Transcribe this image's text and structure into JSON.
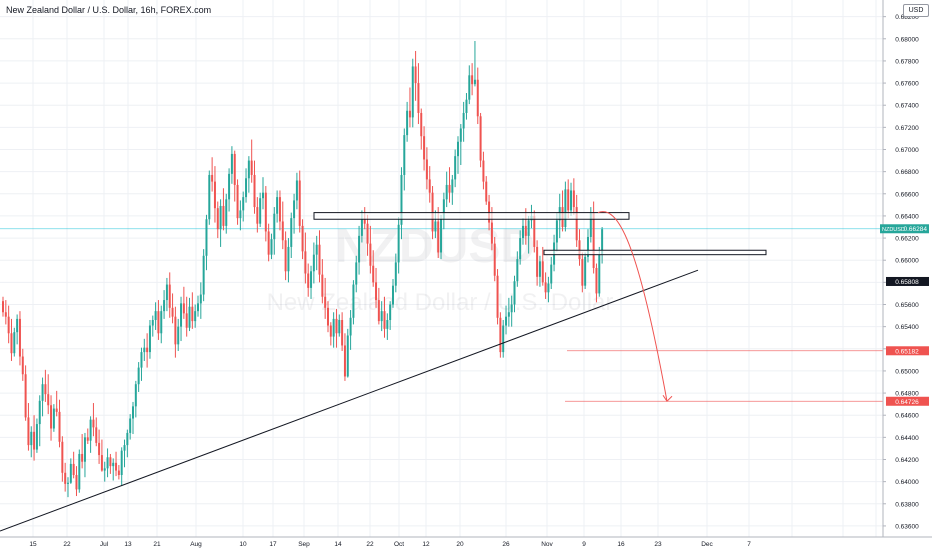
{
  "header": {
    "title": "New Zealand Dollar / U.S. Dollar, 16h, FOREX.com",
    "currency_button": "USD"
  },
  "watermark": {
    "symbol": "NZDUSD",
    "name": "New Zealand Dollar / U.S. Dollar"
  },
  "colors": {
    "up": "#26a69a",
    "down": "#ef5350",
    "grid": "#eef0f4",
    "axis_text": "#131722",
    "trendline": "#131722",
    "price_line": "#00bcd4",
    "live_price_tag": "#26a69a",
    "current_tag": "#131722",
    "target_red": "#ef5350"
  },
  "chart_data": {
    "type": "candlestick",
    "timeframe": "16h",
    "y_axis": {
      "range": [
        0.635,
        0.684
      ],
      "ticks": [
        "0.68400",
        "0.68200",
        "0.68000",
        "0.67800",
        "0.67600",
        "0.67400",
        "0.67200",
        "0.67000",
        "0.66800",
        "0.66600",
        "0.66400",
        "0.66200",
        "0.66000",
        "0.65800",
        "0.65600",
        "0.65400",
        "0.65200",
        "0.65000",
        "0.64800",
        "0.64600",
        "0.64400",
        "0.64200",
        "0.64000",
        "0.63800",
        "0.63600"
      ]
    },
    "x_axis": {
      "ticks": [
        "15",
        "22",
        "Jul",
        "13",
        "21",
        "Aug",
        "10",
        "17",
        "Sep",
        "14",
        "22",
        "Oct",
        "12",
        "20",
        "26",
        "Nov",
        "9",
        "16",
        "23",
        "Dec",
        "7"
      ]
    },
    "price_tags": [
      {
        "label": "NZDUSD",
        "value": "0.66284",
        "kind": "live"
      },
      {
        "value": "0.65808",
        "kind": "current"
      },
      {
        "value": "0.65182",
        "kind": "target"
      },
      {
        "value": "0.64726",
        "kind": "target"
      }
    ],
    "candles_ohlc": [
      [
        0.6563,
        0.6567,
        0.6549,
        0.6553
      ],
      [
        0.6553,
        0.6564,
        0.6542,
        0.6549
      ],
      [
        0.6549,
        0.6559,
        0.6525,
        0.6534
      ],
      [
        0.6534,
        0.6547,
        0.6509,
        0.6516
      ],
      [
        0.6516,
        0.6539,
        0.6513,
        0.6535
      ],
      [
        0.6535,
        0.6551,
        0.6524,
        0.6547
      ],
      [
        0.6547,
        0.6554,
        0.6505,
        0.6513
      ],
      [
        0.6513,
        0.652,
        0.6491,
        0.6497
      ],
      [
        0.6497,
        0.6505,
        0.6455,
        0.6458
      ],
      [
        0.6458,
        0.6471,
        0.6428,
        0.6433
      ],
      [
        0.6433,
        0.645,
        0.6422,
        0.6445
      ],
      [
        0.6445,
        0.646,
        0.6419,
        0.6429
      ],
      [
        0.6429,
        0.6457,
        0.6426,
        0.6452
      ],
      [
        0.6452,
        0.6478,
        0.6432,
        0.6473
      ],
      [
        0.6473,
        0.6494,
        0.6459,
        0.6488
      ],
      [
        0.6488,
        0.6501,
        0.6472,
        0.6479
      ],
      [
        0.6479,
        0.6497,
        0.6461,
        0.6469
      ],
      [
        0.6469,
        0.6478,
        0.6437,
        0.6448
      ],
      [
        0.6448,
        0.647,
        0.6445,
        0.6466
      ],
      [
        0.6466,
        0.6482,
        0.6459,
        0.6463
      ],
      [
        0.6463,
        0.6474,
        0.6431,
        0.6436
      ],
      [
        0.6436,
        0.6441,
        0.64,
        0.6408
      ],
      [
        0.6408,
        0.6417,
        0.6391,
        0.6398
      ],
      [
        0.6398,
        0.6404,
        0.6386,
        0.6399
      ],
      [
        0.6399,
        0.6421,
        0.6398,
        0.6416
      ],
      [
        0.6416,
        0.6427,
        0.6403,
        0.6406
      ],
      [
        0.6406,
        0.6414,
        0.6387,
        0.6393
      ],
      [
        0.6393,
        0.6429,
        0.639,
        0.6425
      ],
      [
        0.6425,
        0.6443,
        0.6412,
        0.6418
      ],
      [
        0.6418,
        0.6444,
        0.6404,
        0.644
      ],
      [
        0.644,
        0.6448,
        0.6434,
        0.6437
      ],
      [
        0.6437,
        0.6459,
        0.6426,
        0.6456
      ],
      [
        0.6456,
        0.6471,
        0.6441,
        0.6449
      ],
      [
        0.6449,
        0.6458,
        0.6432,
        0.6435
      ],
      [
        0.6435,
        0.6447,
        0.6416,
        0.6424
      ],
      [
        0.6424,
        0.6438,
        0.6409,
        0.641
      ],
      [
        0.641,
        0.6418,
        0.64,
        0.6412
      ],
      [
        0.6412,
        0.643,
        0.6404,
        0.6422
      ],
      [
        0.6422,
        0.6425,
        0.6407,
        0.6414
      ],
      [
        0.6414,
        0.6421,
        0.6401,
        0.6417
      ],
      [
        0.6417,
        0.6427,
        0.6405,
        0.641
      ],
      [
        0.641,
        0.6415,
        0.6402,
        0.6406
      ],
      [
        0.6406,
        0.6431,
        0.6396,
        0.6428
      ],
      [
        0.6428,
        0.6438,
        0.6413,
        0.6433
      ],
      [
        0.6433,
        0.6447,
        0.6422,
        0.6444
      ],
      [
        0.6444,
        0.6461,
        0.6438,
        0.6457
      ],
      [
        0.6457,
        0.6472,
        0.6443,
        0.6468
      ],
      [
        0.6468,
        0.6491,
        0.6458,
        0.6488
      ],
      [
        0.6488,
        0.6508,
        0.6481,
        0.6503
      ],
      [
        0.6503,
        0.6521,
        0.6491,
        0.6517
      ],
      [
        0.6517,
        0.6529,
        0.6509,
        0.6521
      ],
      [
        0.6521,
        0.6534,
        0.6503,
        0.6517
      ],
      [
        0.6517,
        0.6546,
        0.6511,
        0.6541
      ],
      [
        0.6541,
        0.655,
        0.6531,
        0.6546
      ],
      [
        0.6546,
        0.6562,
        0.6537,
        0.6554
      ],
      [
        0.6554,
        0.6564,
        0.6528,
        0.6534
      ],
      [
        0.6534,
        0.6559,
        0.6525,
        0.6554
      ],
      [
        0.6554,
        0.6573,
        0.6547,
        0.6564
      ],
      [
        0.6564,
        0.6584,
        0.6554,
        0.6578
      ],
      [
        0.6578,
        0.6589,
        0.6548,
        0.6557
      ],
      [
        0.6557,
        0.657,
        0.6543,
        0.6549
      ],
      [
        0.6549,
        0.6558,
        0.6512,
        0.6524
      ],
      [
        0.6524,
        0.6547,
        0.6518,
        0.654
      ],
      [
        0.654,
        0.6567,
        0.6527,
        0.6561
      ],
      [
        0.6561,
        0.6576,
        0.6547,
        0.6552
      ],
      [
        0.6552,
        0.6567,
        0.6531,
        0.6539
      ],
      [
        0.6539,
        0.6566,
        0.6536,
        0.6558
      ],
      [
        0.6558,
        0.6571,
        0.6538,
        0.6545
      ],
      [
        0.6545,
        0.656,
        0.6539,
        0.6554
      ],
      [
        0.6554,
        0.6568,
        0.6549,
        0.6561
      ],
      [
        0.6561,
        0.658,
        0.6547,
        0.6569
      ],
      [
        0.6569,
        0.661,
        0.6563,
        0.6604
      ],
      [
        0.6604,
        0.6641,
        0.6591,
        0.6637
      ],
      [
        0.6637,
        0.6681,
        0.6632,
        0.6677
      ],
      [
        0.6677,
        0.6693,
        0.6662,
        0.6671
      ],
      [
        0.6671,
        0.6685,
        0.6634,
        0.6647
      ],
      [
        0.6647,
        0.6653,
        0.662,
        0.6628
      ],
      [
        0.6628,
        0.6655,
        0.6612,
        0.6649
      ],
      [
        0.6649,
        0.6665,
        0.6627,
        0.6631
      ],
      [
        0.6631,
        0.666,
        0.6624,
        0.6655
      ],
      [
        0.6655,
        0.6683,
        0.6644,
        0.6678
      ],
      [
        0.6678,
        0.6703,
        0.6669,
        0.6696
      ],
      [
        0.6696,
        0.6699,
        0.6653,
        0.6668
      ],
      [
        0.6668,
        0.6673,
        0.6632,
        0.6638
      ],
      [
        0.6638,
        0.6654,
        0.6627,
        0.6645
      ],
      [
        0.6645,
        0.6662,
        0.6635,
        0.6657
      ],
      [
        0.6657,
        0.6683,
        0.6652,
        0.6674
      ],
      [
        0.6674,
        0.6694,
        0.6661,
        0.669
      ],
      [
        0.669,
        0.6709,
        0.667,
        0.6677
      ],
      [
        0.6677,
        0.669,
        0.6642,
        0.6648
      ],
      [
        0.6648,
        0.6657,
        0.6625,
        0.6633
      ],
      [
        0.6633,
        0.6661,
        0.663,
        0.6656
      ],
      [
        0.6656,
        0.6675,
        0.6646,
        0.6661
      ],
      [
        0.6661,
        0.6667,
        0.6617,
        0.6626
      ],
      [
        0.6626,
        0.6633,
        0.6599,
        0.6605
      ],
      [
        0.6605,
        0.6624,
        0.6601,
        0.6619
      ],
      [
        0.6619,
        0.6648,
        0.6605,
        0.6642
      ],
      [
        0.6642,
        0.6663,
        0.6634,
        0.6657
      ],
      [
        0.6657,
        0.6663,
        0.6627,
        0.6635
      ],
      [
        0.6635,
        0.6653,
        0.661,
        0.6618
      ],
      [
        0.6618,
        0.6626,
        0.6582,
        0.659
      ],
      [
        0.659,
        0.662,
        0.658,
        0.6612
      ],
      [
        0.6612,
        0.6643,
        0.6602,
        0.6638
      ],
      [
        0.6638,
        0.666,
        0.6624,
        0.6654
      ],
      [
        0.6654,
        0.6679,
        0.6646,
        0.6672
      ],
      [
        0.6672,
        0.6681,
        0.6625,
        0.6631
      ],
      [
        0.6631,
        0.6637,
        0.6601,
        0.6608
      ],
      [
        0.6608,
        0.6625,
        0.6579,
        0.6588
      ],
      [
        0.6588,
        0.6597,
        0.6567,
        0.6575
      ],
      [
        0.6575,
        0.6595,
        0.6565,
        0.659
      ],
      [
        0.659,
        0.6616,
        0.6579,
        0.6605
      ],
      [
        0.6605,
        0.6622,
        0.6591,
        0.6614
      ],
      [
        0.6614,
        0.6627,
        0.658,
        0.6587
      ],
      [
        0.6587,
        0.6601,
        0.6561,
        0.6567
      ],
      [
        0.6567,
        0.6584,
        0.6547,
        0.6557
      ],
      [
        0.6557,
        0.6563,
        0.6535,
        0.6541
      ],
      [
        0.6541,
        0.6544,
        0.6523,
        0.6531
      ],
      [
        0.6531,
        0.6553,
        0.6521,
        0.6547
      ],
      [
        0.6547,
        0.6556,
        0.6521,
        0.6534
      ],
      [
        0.6534,
        0.6551,
        0.6531,
        0.6546
      ],
      [
        0.6546,
        0.6553,
        0.6518,
        0.6523
      ],
      [
        0.6523,
        0.6534,
        0.6491,
        0.6495
      ],
      [
        0.6495,
        0.6538,
        0.6494,
        0.6532
      ],
      [
        0.6532,
        0.6555,
        0.6519,
        0.6548
      ],
      [
        0.6548,
        0.6582,
        0.6542,
        0.6578
      ],
      [
        0.6578,
        0.6604,
        0.6571,
        0.6598
      ],
      [
        0.6598,
        0.6631,
        0.6587,
        0.6622
      ],
      [
        0.6622,
        0.6645,
        0.6616,
        0.6637
      ],
      [
        0.6637,
        0.6648,
        0.6628,
        0.6633
      ],
      [
        0.6633,
        0.6641,
        0.6604,
        0.6615
      ],
      [
        0.6615,
        0.6631,
        0.6588,
        0.6595
      ],
      [
        0.6595,
        0.6609,
        0.6576,
        0.658
      ],
      [
        0.658,
        0.6593,
        0.6557,
        0.6564
      ],
      [
        0.6564,
        0.6575,
        0.6542,
        0.6545
      ],
      [
        0.6545,
        0.6563,
        0.6536,
        0.6554
      ],
      [
        0.6554,
        0.6567,
        0.653,
        0.6538
      ],
      [
        0.6538,
        0.6552,
        0.6528,
        0.6546
      ],
      [
        0.6546,
        0.6563,
        0.6537,
        0.656
      ],
      [
        0.656,
        0.6583,
        0.6557,
        0.6577
      ],
      [
        0.6577,
        0.6606,
        0.6571,
        0.6598
      ],
      [
        0.6598,
        0.6639,
        0.6588,
        0.6632
      ],
      [
        0.6632,
        0.6684,
        0.6619,
        0.6677
      ],
      [
        0.6677,
        0.6719,
        0.6663,
        0.6713
      ],
      [
        0.6713,
        0.6743,
        0.6707,
        0.6735
      ],
      [
        0.6735,
        0.6756,
        0.672,
        0.6729
      ],
      [
        0.6729,
        0.6782,
        0.672,
        0.6775
      ],
      [
        0.6775,
        0.6789,
        0.6744,
        0.676
      ],
      [
        0.676,
        0.6778,
        0.6723,
        0.6733
      ],
      [
        0.6733,
        0.6737,
        0.67,
        0.6712
      ],
      [
        0.6712,
        0.6721,
        0.6681,
        0.6691
      ],
      [
        0.6691,
        0.6702,
        0.6664,
        0.6673
      ],
      [
        0.6673,
        0.6685,
        0.6652,
        0.6661
      ],
      [
        0.6661,
        0.6667,
        0.6619,
        0.6626
      ],
      [
        0.6626,
        0.6645,
        0.662,
        0.6635
      ],
      [
        0.6635,
        0.6648,
        0.6602,
        0.6607
      ],
      [
        0.6607,
        0.6641,
        0.6601,
        0.6637
      ],
      [
        0.6637,
        0.6661,
        0.6628,
        0.6655
      ],
      [
        0.6655,
        0.668,
        0.6648,
        0.6668
      ],
      [
        0.6668,
        0.6684,
        0.6652,
        0.6661
      ],
      [
        0.6661,
        0.6677,
        0.665,
        0.6673
      ],
      [
        0.6673,
        0.67,
        0.6666,
        0.6694
      ],
      [
        0.6694,
        0.6712,
        0.6678,
        0.6707
      ],
      [
        0.6707,
        0.6723,
        0.6686,
        0.6719
      ],
      [
        0.6719,
        0.6743,
        0.6707,
        0.6733
      ],
      [
        0.6733,
        0.6751,
        0.6727,
        0.6745
      ],
      [
        0.6745,
        0.6776,
        0.6741,
        0.6767
      ],
      [
        0.6767,
        0.6778,
        0.6749,
        0.6759
      ],
      [
        0.6759,
        0.6798,
        0.6757,
        0.6763
      ],
      [
        0.6763,
        0.6774,
        0.6723,
        0.673
      ],
      [
        0.673,
        0.6733,
        0.6684,
        0.669
      ],
      [
        0.669,
        0.6698,
        0.6664,
        0.6671
      ],
      [
        0.6671,
        0.6676,
        0.665,
        0.6653
      ],
      [
        0.6653,
        0.6659,
        0.6627,
        0.6634
      ],
      [
        0.6634,
        0.6648,
        0.6609,
        0.6615
      ],
      [
        0.6615,
        0.6621,
        0.6581,
        0.6586
      ],
      [
        0.6586,
        0.6592,
        0.6542,
        0.6548
      ],
      [
        0.6548,
        0.6553,
        0.6512,
        0.6517
      ],
      [
        0.6517,
        0.6546,
        0.6512,
        0.6541
      ],
      [
        0.6541,
        0.6559,
        0.6533,
        0.6549
      ],
      [
        0.6549,
        0.6566,
        0.654,
        0.6553
      ],
      [
        0.6553,
        0.6568,
        0.654,
        0.656
      ],
      [
        0.656,
        0.6586,
        0.6553,
        0.6581
      ],
      [
        0.6581,
        0.6608,
        0.6576,
        0.6601
      ],
      [
        0.6601,
        0.6627,
        0.6596,
        0.662
      ],
      [
        0.662,
        0.6638,
        0.6614,
        0.6631
      ],
      [
        0.6631,
        0.6647,
        0.6614,
        0.6622
      ],
      [
        0.6622,
        0.664,
        0.6606,
        0.6636
      ],
      [
        0.6636,
        0.665,
        0.6629,
        0.664
      ],
      [
        0.664,
        0.6645,
        0.6607,
        0.6612
      ],
      [
        0.6612,
        0.6618,
        0.6577,
        0.6585
      ],
      [
        0.6585,
        0.6604,
        0.6576,
        0.6599
      ],
      [
        0.6599,
        0.6612,
        0.6577,
        0.658
      ],
      [
        0.658,
        0.6589,
        0.6565,
        0.6571
      ],
      [
        0.6571,
        0.6585,
        0.6562,
        0.6579
      ],
      [
        0.6579,
        0.6603,
        0.6574,
        0.6596
      ],
      [
        0.6596,
        0.6623,
        0.659,
        0.6616
      ],
      [
        0.6616,
        0.6643,
        0.6608,
        0.6636
      ],
      [
        0.6636,
        0.666,
        0.662,
        0.6648
      ],
      [
        0.6648,
        0.6663,
        0.6626,
        0.663
      ],
      [
        0.663,
        0.6671,
        0.6626,
        0.6664
      ],
      [
        0.6664,
        0.6673,
        0.6638,
        0.6645
      ],
      [
        0.6645,
        0.667,
        0.664,
        0.6663
      ],
      [
        0.6663,
        0.6674,
        0.6641,
        0.6648
      ],
      [
        0.6648,
        0.6659,
        0.6612,
        0.6618
      ],
      [
        0.6618,
        0.6628,
        0.6595,
        0.6601
      ],
      [
        0.6601,
        0.6607,
        0.6571,
        0.6577
      ],
      [
        0.6577,
        0.6607,
        0.6574,
        0.6603
      ],
      [
        0.6603,
        0.6628,
        0.6598,
        0.6621
      ],
      [
        0.6621,
        0.6648,
        0.6616,
        0.6643
      ],
      [
        0.6643,
        0.6653,
        0.6588,
        0.6593
      ],
      [
        0.6593,
        0.6597,
        0.6562,
        0.657
      ],
      [
        0.657,
        0.6612,
        0.6567,
        0.6605
      ],
      [
        0.6605,
        0.663,
        0.6597,
        0.6628
      ]
    ],
    "trendline": {
      "from": {
        "x_label": "15",
        "y": 0.636
      },
      "to_price": 0.6591
    },
    "resistance_zone": {
      "from_price": 0.6637,
      "to_price": 0.6643
    },
    "support_zone": {
      "from_price": 0.6605,
      "to_price": 0.6609
    },
    "projection": {
      "from_price": 0.6643,
      "to_price": 0.64726
    }
  }
}
